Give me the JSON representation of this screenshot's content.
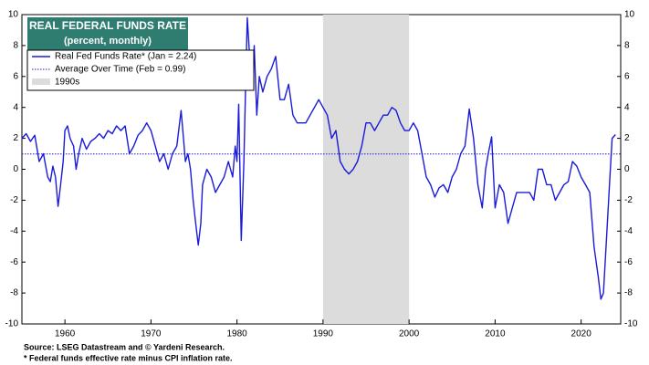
{
  "chart_data": {
    "type": "line",
    "title": "REAL FEDERAL FUNDS RATE",
    "subtitle": "(percent, monthly)",
    "x": [
      1955.0,
      1955.5,
      1956,
      1956.5,
      1957,
      1957.5,
      1958,
      1958.3,
      1958.6,
      1958.9,
      1959.2,
      1959.5,
      1959.8,
      1960.0,
      1960.3,
      1960.6,
      1961,
      1961.3,
      1961.6,
      1962,
      1962.5,
      1963,
      1963.5,
      1964,
      1964.5,
      1965,
      1965.5,
      1966,
      1966.5,
      1967,
      1967.5,
      1968,
      1968.5,
      1969,
      1969.5,
      1970,
      1970.5,
      1971,
      1971.5,
      1972,
      1972.5,
      1973,
      1973.5,
      1973.7,
      1974,
      1974.3,
      1974.6,
      1974.9,
      1975.2,
      1975.5,
      1975.8,
      1976,
      1976.5,
      1977,
      1977.5,
      1978,
      1978.5,
      1979,
      1979.5,
      1979.8,
      1980.0,
      1980.2,
      1980.5,
      1980.8,
      1981,
      1981.2,
      1981.5,
      1981.8,
      1982,
      1982.3,
      1982.6,
      1983,
      1983.5,
      1984,
      1984.5,
      1985,
      1985.5,
      1986,
      1986.5,
      1987,
      1987.5,
      1988,
      1988.5,
      1989,
      1989.5,
      1990,
      1990.5,
      1991,
      1991.5,
      1992,
      1992.5,
      1993,
      1993.5,
      1994,
      1994.5,
      1995,
      1995.5,
      1996,
      1996.5,
      1997,
      1997.5,
      1998,
      1998.5,
      1999,
      1999.5,
      2000,
      2000.5,
      2001,
      2001.5,
      2002,
      2002.5,
      2003,
      2003.5,
      2004,
      2004.5,
      2005,
      2005.5,
      2006,
      2006.5,
      2007,
      2007.5,
      2008,
      2008.5,
      2008.9,
      2009.2,
      2009.6,
      2010,
      2010.5,
      2011,
      2011.5,
      2012,
      2012.5,
      2013,
      2013.5,
      2014,
      2014.5,
      2015,
      2015.5,
      2016,
      2016.5,
      2017,
      2017.5,
      2018,
      2018.5,
      2019,
      2019.5,
      2020,
      2020.5,
      2021,
      2021.5,
      2022,
      2022.3,
      2022.6,
      2023,
      2023.3,
      2023.6,
      2024.0
    ],
    "series": [
      {
        "name": "Real Fed Funds Rate* (Jan = 2.24)",
        "color": "#1a1adb",
        "values": [
          2.0,
          2.3,
          1.8,
          2.2,
          0.5,
          1.0,
          -0.5,
          -0.8,
          0.2,
          -0.5,
          -2.4,
          -1.0,
          0.5,
          2.5,
          2.8,
          2.0,
          1.5,
          0.0,
          1.0,
          2.0,
          1.3,
          1.8,
          2.0,
          2.3,
          2.0,
          2.5,
          2.3,
          2.8,
          2.5,
          2.8,
          1.0,
          1.5,
          2.2,
          2.5,
          3.0,
          2.5,
          1.5,
          0.5,
          1.0,
          0.0,
          1.0,
          1.5,
          3.8,
          2.5,
          0.5,
          1.0,
          0.0,
          -2.0,
          -3.5,
          -4.9,
          -3.5,
          -1.0,
          0.0,
          -0.5,
          -1.5,
          -1.0,
          -0.5,
          0.5,
          -0.5,
          1.5,
          0.5,
          4.2,
          -4.6,
          0.5,
          5.5,
          9.8,
          7.0,
          5.5,
          8.0,
          3.5,
          6.0,
          5.0,
          6.0,
          6.5,
          7.3,
          4.5,
          4.5,
          5.5,
          3.5,
          3.0,
          3.0,
          3.0,
          3.5,
          4.0,
          4.5,
          4.0,
          3.5,
          2.0,
          2.5,
          0.5,
          0.0,
          -0.3,
          0.0,
          0.5,
          1.5,
          3.0,
          3.0,
          2.5,
          3.0,
          3.5,
          3.5,
          4.0,
          3.8,
          3.0,
          2.5,
          2.5,
          3.0,
          2.5,
          1.0,
          -0.5,
          -1.0,
          -1.8,
          -1.2,
          -1.0,
          -1.5,
          -0.5,
          0.0,
          1.0,
          1.5,
          3.9,
          2.0,
          -1.0,
          -2.5,
          0.0,
          1.0,
          2.1,
          -2.5,
          -1.0,
          -1.5,
          -3.5,
          -2.5,
          -1.5,
          -1.5,
          -1.5,
          -1.5,
          -2.0,
          0.0,
          0.0,
          -1.0,
          -1.0,
          -2.0,
          -1.5,
          -1.0,
          -0.8,
          0.5,
          0.2,
          -0.5,
          -1.0,
          -1.5,
          -5.0,
          -7.0,
          -8.4,
          -8.0,
          -4.0,
          -1.0,
          2.0,
          2.24
        ]
      }
    ],
    "reference_lines": [
      {
        "name": "Average Over Time (Feb = 0.99)",
        "value": 0.99,
        "color": "#1a1adb"
      }
    ],
    "shaded_regions": [
      {
        "name": "1990s",
        "start": 1990,
        "end": 2000,
        "color": "#dcdcdc"
      }
    ],
    "xlim": [
      1955,
      2024.6
    ],
    "xticks": [
      1960,
      1970,
      1980,
      1990,
      2000,
      2010,
      2020
    ],
    "ylim": [
      -10,
      10
    ],
    "yticks": [
      -10,
      -8,
      -6,
      -4,
      -2,
      0,
      2,
      4,
      6,
      8,
      10
    ],
    "notes": [
      "Source: LSEG Datastream and © Yardeni Research.",
      "* Federal funds effective rate minus CPI inflation rate."
    ]
  }
}
